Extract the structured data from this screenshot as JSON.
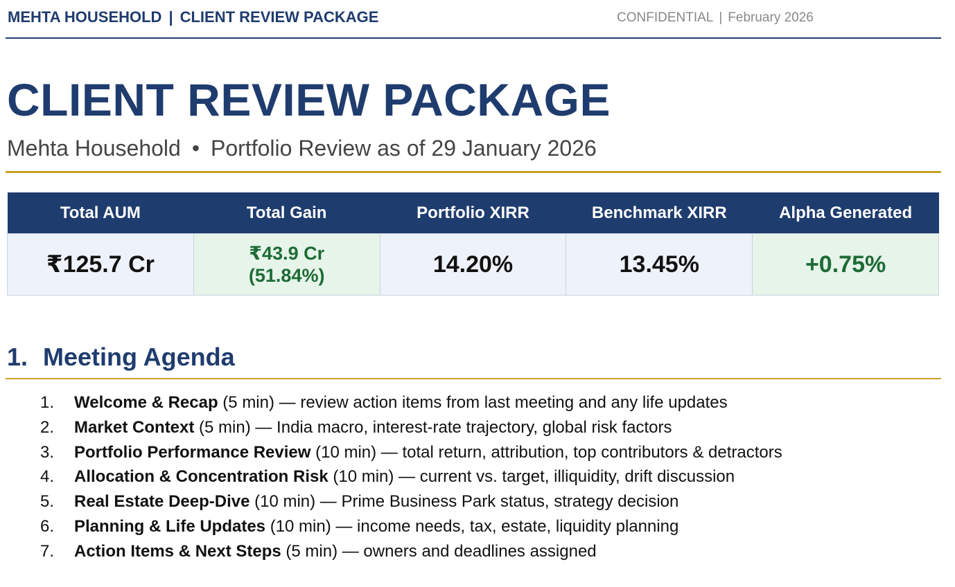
{
  "header": {
    "client": "MEHTA HOUSEHOLD",
    "separator": "|",
    "document_type": "CLIENT REVIEW PACKAGE",
    "classification": "CONFIDENTIAL",
    "date": "February 2026"
  },
  "title": "CLIENT REVIEW PACKAGE",
  "subtitle": {
    "household": "Mehta Household",
    "bullet": "•",
    "review": "Portfolio Review as of 29 January 2026"
  },
  "metrics": {
    "headers": [
      "Total AUM",
      "Total Gain",
      "Portfolio XIRR",
      "Benchmark XIRR",
      "Alpha Generated"
    ],
    "total_aum": "₹125.7 Cr",
    "total_gain_amount": "₹43.9 Cr",
    "total_gain_percent": "(51.84%)",
    "portfolio_xirr": "14.20%",
    "benchmark_xirr": "13.45%",
    "alpha": "+0.75%"
  },
  "agenda_section": {
    "number": "1.",
    "heading": "Meeting Agenda",
    "items": [
      {
        "num": "1.",
        "title": "Welcome & Recap",
        "duration": " (5 min)",
        "desc": " — review action items from last meeting and any life updates"
      },
      {
        "num": "2.",
        "title": "Market Context",
        "duration": " (5 min)",
        "desc": " — India macro, interest-rate trajectory, global risk factors"
      },
      {
        "num": "3.",
        "title": "Portfolio Performance Review",
        "duration": " (10 min)",
        "desc": " — total return, attribution, top contributors & detractors"
      },
      {
        "num": "4.",
        "title": "Allocation & Concentration Risk",
        "duration": " (10 min)",
        "desc": " — current vs. target, illiquidity, drift discussion"
      },
      {
        "num": "5.",
        "title": "Real Estate Deep-Dive",
        "duration": " (10 min)",
        "desc": " — Prime Business Park status, strategy decision"
      },
      {
        "num": "6.",
        "title": "Planning & Life Updates",
        "duration": " (10 min)",
        "desc": " — income needs, tax, estate, liquidity planning"
      },
      {
        "num": "7.",
        "title": "Action Items & Next Steps",
        "duration": " (5 min)",
        "desc": " — owners and deadlines assigned"
      }
    ]
  }
}
